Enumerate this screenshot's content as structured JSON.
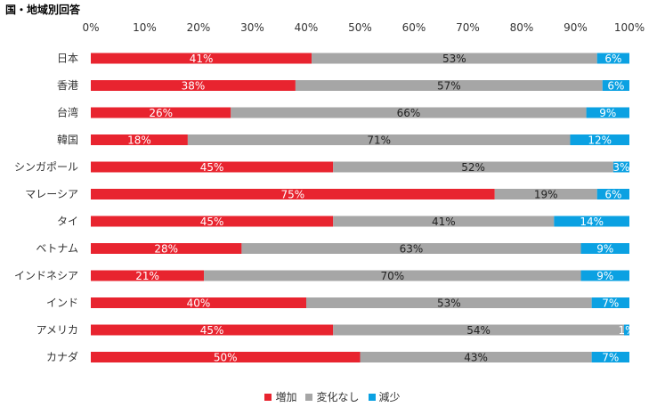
{
  "chart_data": {
    "type": "bar",
    "orientation": "horizontal",
    "stacked": "percent",
    "title": "国・地域別回答",
    "categories": [
      "日本",
      "香港",
      "台湾",
      "韓国",
      "シンガポール",
      "マレーシア",
      "タイ",
      "ベトナム",
      "インドネシア",
      "インド",
      "アメリカ",
      "カナダ"
    ],
    "series": [
      {
        "name": "増加",
        "color": "#e8242f",
        "label_color": "#ffffff",
        "values": [
          41,
          38,
          26,
          18,
          45,
          75,
          45,
          28,
          21,
          40,
          45,
          50
        ]
      },
      {
        "name": "変化なし",
        "color": "#a6a6a6",
        "label_color": "#222222",
        "values": [
          53,
          57,
          66,
          71,
          52,
          19,
          41,
          63,
          70,
          53,
          54,
          43
        ]
      },
      {
        "name": "減少",
        "color": "#0ba1e2",
        "label_color": "#ffffff",
        "values": [
          6,
          6,
          9,
          12,
          3,
          6,
          14,
          9,
          9,
          7,
          1,
          7
        ]
      }
    ],
    "xlim": [
      0,
      100
    ],
    "xticks": [
      "0%",
      "10%",
      "20%",
      "30%",
      "40%",
      "50%",
      "60%",
      "70%",
      "80%",
      "90%",
      "100%"
    ],
    "label_suffix": "%",
    "grid": false,
    "legend_position": "bottom"
  }
}
